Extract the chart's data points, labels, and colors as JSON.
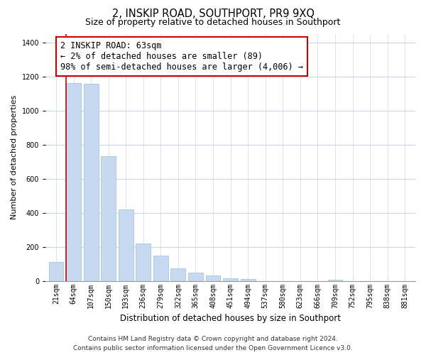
{
  "title": "2, INSKIP ROAD, SOUTHPORT, PR9 9XQ",
  "subtitle": "Size of property relative to detached houses in Southport",
  "xlabel": "Distribution of detached houses by size in Southport",
  "ylabel": "Number of detached properties",
  "bar_labels": [
    "21sqm",
    "64sqm",
    "107sqm",
    "150sqm",
    "193sqm",
    "236sqm",
    "279sqm",
    "322sqm",
    "365sqm",
    "408sqm",
    "451sqm",
    "494sqm",
    "537sqm",
    "580sqm",
    "623sqm",
    "666sqm",
    "709sqm",
    "752sqm",
    "795sqm",
    "838sqm",
    "881sqm"
  ],
  "bar_values": [
    110,
    1160,
    1155,
    730,
    420,
    220,
    148,
    75,
    50,
    30,
    15,
    12,
    0,
    0,
    0,
    0,
    5,
    0,
    0,
    0,
    0
  ],
  "bar_color": "#c6d9f1",
  "bar_edge_color": "#a8c4e0",
  "ylim": [
    0,
    1450
  ],
  "yticks": [
    0,
    200,
    400,
    600,
    800,
    1000,
    1200,
    1400
  ],
  "annotation_title": "2 INSKIP ROAD: 63sqm",
  "annotation_line1": "← 2% of detached houses are smaller (89)",
  "annotation_line2": "98% of semi-detached houses are larger (4,006) →",
  "footer_line1": "Contains HM Land Registry data © Crown copyright and database right 2024.",
  "footer_line2": "Contains public sector information licensed under the Open Government Licence v3.0.",
  "background_color": "#ffffff",
  "grid_color": "#c8d8e8",
  "marker_line_color": "#cc0000",
  "title_fontsize": 10.5,
  "subtitle_fontsize": 9,
  "xlabel_fontsize": 8.5,
  "ylabel_fontsize": 8,
  "tick_fontsize": 7,
  "annotation_fontsize": 8.5,
  "footer_fontsize": 6.5
}
